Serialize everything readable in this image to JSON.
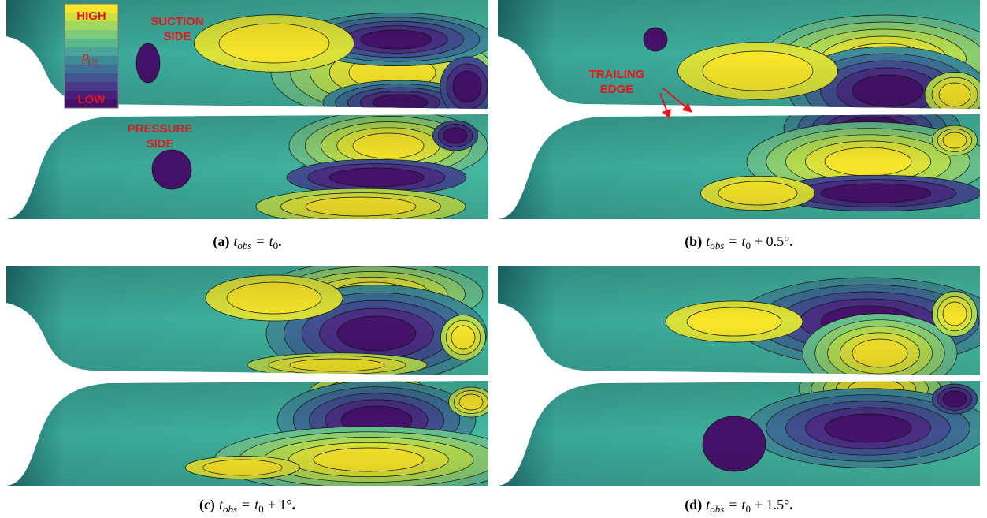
{
  "panels": [
    {
      "caption": {
        "label": "(a)",
        "var": "t",
        "var_sub": "obs",
        "eq": "=",
        "rhs": "t",
        "rhs_sub": "0",
        "end": "."
      }
    },
    {
      "caption": {
        "label": "(b)",
        "var": "t",
        "var_sub": "obs",
        "eq": "=",
        "rhs": "t",
        "rhs_sub": "0",
        "offset": "+ 0.5°",
        "end": "."
      }
    },
    {
      "caption": {
        "label": "(c)",
        "var": "t",
        "var_sub": "obs",
        "eq": "=",
        "rhs": "t",
        "rhs_sub": "0",
        "offset": "+ 1°",
        "end": "."
      }
    },
    {
      "caption": {
        "label": "(d)",
        "var": "t",
        "var_sub": "obs",
        "eq": "=",
        "rhs": "t",
        "rhs_sub": "0",
        "offset": "+ 1.5°",
        "end": "."
      }
    }
  ],
  "legend": {
    "high": "HIGH",
    "symbol": "p",
    "prime": "′",
    "subscript": "UL",
    "low": "LOW"
  },
  "annotations": {
    "suction": [
      "SUCTION",
      "SIDE"
    ],
    "pressure": [
      "PRESSURE",
      "SIDE"
    ],
    "trailing_edge": [
      "TRAILING",
      "EDGE"
    ]
  }
}
